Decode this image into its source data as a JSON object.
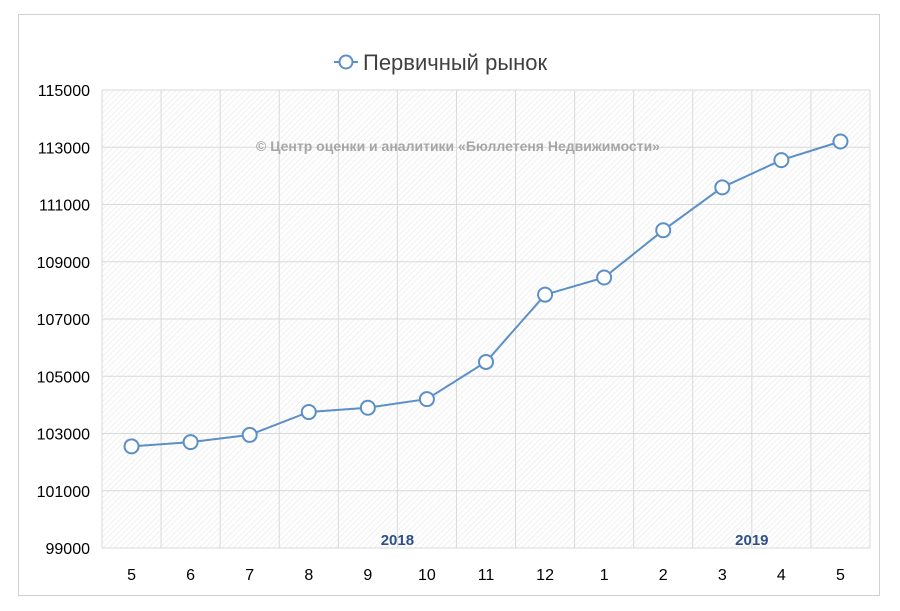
{
  "chart_data": {
    "type": "line",
    "categories": [
      "5",
      "6",
      "7",
      "8",
      "9",
      "10",
      "11",
      "12",
      "1",
      "2",
      "3",
      "4",
      "5"
    ],
    "series": [
      {
        "name": "Первичный рынок",
        "values": [
          102550,
          102700,
          102950,
          103750,
          103900,
          104200,
          105500,
          107850,
          108450,
          110100,
          111600,
          112550,
          113200
        ],
        "color": "#5b8fc7"
      }
    ],
    "year_labels": [
      {
        "text": "2018",
        "category_index": 4.5
      },
      {
        "text": "2019",
        "category_index": 10.5
      }
    ],
    "watermark": "© Центр оценки и аналитики «Бюллетеня Недвижимости»",
    "ylim": [
      99000,
      115000
    ],
    "yticks": [
      99000,
      101000,
      103000,
      105000,
      107000,
      109000,
      111000,
      113000,
      115000
    ],
    "legend_position": "top",
    "grid": true,
    "colors": {
      "line": "#5b8fc7",
      "grid": "#d9d9d9",
      "year_label": "#2f4f8a",
      "watermark": "#a6a6a6"
    }
  }
}
